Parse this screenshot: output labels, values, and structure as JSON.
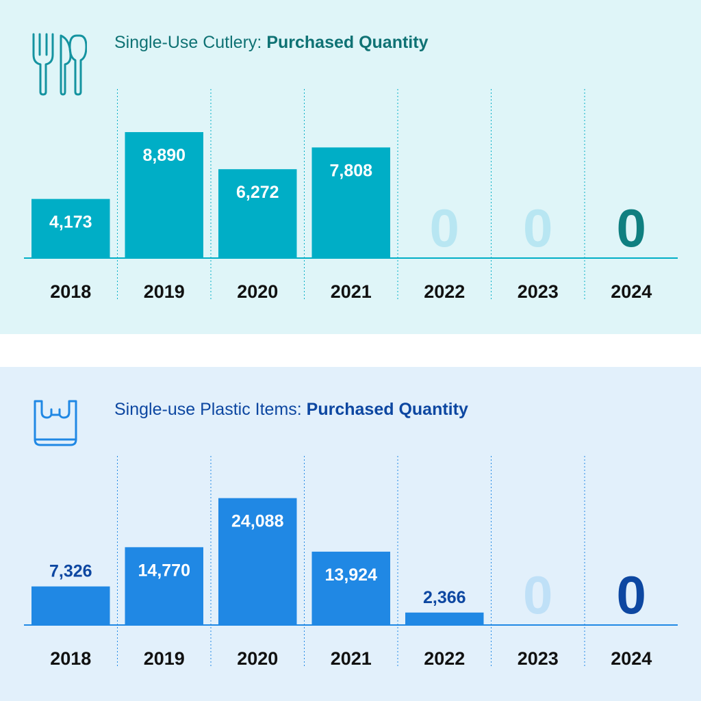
{
  "panels": [
    {
      "title_regular": "Single-Use Cutlery:",
      "title_bold": "Purchased Quantity",
      "icon": "cutlery-icon",
      "colors": {
        "background": "#dff5f8",
        "title": "#0f7274",
        "bar": "#00aec6",
        "bar_label": "#ffffff",
        "zero_faded": "#b8e6f2",
        "zero_highlight": "#0f7f80",
        "axis": "#00aec6",
        "divider": "#00aec6"
      }
    },
    {
      "title_regular": "Single-use Plastic Items:",
      "title_bold": "Purchased Quantity",
      "icon": "plastic-bag-icon",
      "colors": {
        "background": "#e2f0fb",
        "title": "#0d47a1",
        "bar": "#2088e4",
        "bar_label": "#ffffff",
        "bar_label_small": "#0d47a1",
        "zero_faded": "#bfe0f7",
        "zero_highlight": "#0d47a1",
        "axis": "#2088e4",
        "divider": "#2088e4"
      }
    }
  ],
  "chart_data": [
    {
      "type": "bar",
      "title": "Single-Use Cutlery: Purchased Quantity",
      "categories": [
        "2018",
        "2019",
        "2020",
        "2021",
        "2022",
        "2023",
        "2024"
      ],
      "values": [
        4173,
        8890,
        6272,
        7808,
        0,
        0,
        0
      ],
      "labels": [
        "4,173",
        "8,890",
        "6,272",
        "7,808",
        "0",
        "0",
        "0"
      ],
      "ylim": [
        0,
        10000
      ],
      "highlight_zero_category": "2024",
      "grid": false
    },
    {
      "type": "bar",
      "title": "Single-use Plastic Items: Purchased Quantity",
      "categories": [
        "2018",
        "2019",
        "2020",
        "2021",
        "2022",
        "2023",
        "2024"
      ],
      "values": [
        7326,
        14770,
        24088,
        13924,
        2366,
        0,
        0
      ],
      "labels": [
        "7,326",
        "14,770",
        "24,088",
        "13,924",
        "2,366",
        "0",
        "0"
      ],
      "ylim": [
        0,
        26900
      ],
      "highlight_zero_category": "2024",
      "grid": false
    }
  ]
}
